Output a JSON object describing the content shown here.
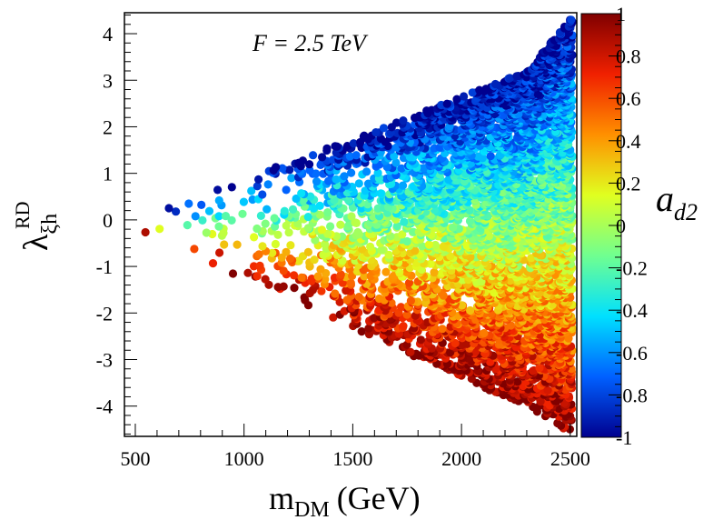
{
  "chart_data": {
    "type": "scatter",
    "annotation": "F = 2.5 TeV",
    "xlabel": "m",
    "xlabel_sub": "DM",
    "xlabel_unit": "(GeV)",
    "ylabel": "λ",
    "ylabel_sub": "ξh",
    "ylabel_sup": "RD",
    "colorbar_label": "a",
    "colorbar_label_sub": "d2",
    "xlim": [
      450,
      2530
    ],
    "ylim": [
      -4.65,
      4.45
    ],
    "clim": [
      -1,
      1
    ],
    "x_ticks": [
      500,
      1000,
      1500,
      2000,
      2500
    ],
    "y_ticks": [
      -4,
      -3,
      -2,
      -1,
      0,
      1,
      2,
      3,
      4
    ],
    "color_ticks": [
      -1,
      -0.8,
      -0.6,
      -0.4,
      -0.2,
      0,
      0.2,
      0.4,
      0.6,
      0.8,
      1
    ],
    "x_tick_labels": [
      "500",
      "1000",
      "1500",
      "2000",
      "2500"
    ],
    "y_tick_labels": [
      "-4",
      "-3",
      "-2",
      "-1",
      "0",
      "1",
      "2",
      "3",
      "4"
    ],
    "color_tick_labels": [
      "-1",
      "-0.8",
      "-0.6",
      "-0.4",
      "-0.2",
      "0",
      "0.2",
      "0.4",
      "0.6",
      "0.8",
      "1"
    ],
    "colormap": [
      "#00008f",
      "#0060ff",
      "#00e0ff",
      "#70ff90",
      "#e0ff20",
      "#ff9000",
      "#f02000",
      "#800000"
    ],
    "points_generated": {
      "count": 5200,
      "x_range": [
        480,
        2510
      ],
      "upper_edge": [
        [
          480,
          0.08
        ],
        [
          800,
          0.5
        ],
        [
          1200,
          1.25
        ],
        [
          1600,
          1.9
        ],
        [
          2000,
          2.65
        ],
        [
          2300,
          3.2
        ],
        [
          2500,
          4.3
        ]
      ],
      "lower_edge": [
        [
          480,
          -0.12
        ],
        [
          800,
          -0.9
        ],
        [
          1200,
          -1.65
        ],
        [
          1600,
          -2.55
        ],
        [
          2000,
          -3.4
        ],
        [
          2300,
          -4.0
        ],
        [
          2500,
          -4.6
        ]
      ],
      "color_rule": "a_d2 ≈ 1 at lower edge → -1 at upper edge, with noise",
      "seed": 7
    }
  }
}
